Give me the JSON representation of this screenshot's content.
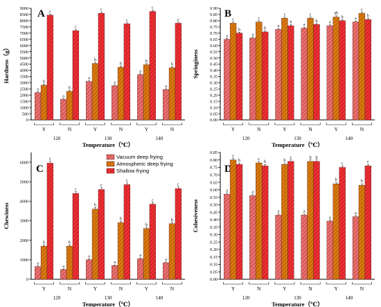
{
  "colors": {
    "vacuum": "#e8706f",
    "atmospheric": "#d9780f",
    "shallow": "#ee3035",
    "axis": "#000000",
    "hatch": "#7a1010"
  },
  "legend": {
    "items": [
      {
        "label": "Vacuum deep frying",
        "color": "#e8706f"
      },
      {
        "label": "Atmospheric deep frying",
        "color": "#d9780f"
      },
      {
        "label": "Shallow frying",
        "color": "#ee3035"
      }
    ]
  },
  "chart_data": [
    {
      "type": "bar",
      "panel_letter": "A",
      "ylabel": "Hardness（g）",
      "xlabel": "Temperature（℃）",
      "ylim": [
        0,
        9000
      ],
      "yticks": [
        0,
        500,
        1000,
        1500,
        2000,
        2500,
        3000,
        3500,
        4000,
        4500,
        5000,
        5500,
        6000,
        6500,
        7000,
        7500,
        8000,
        8500,
        9000
      ],
      "temperatures": [
        "120",
        "130",
        "140"
      ],
      "conditions": [
        "Y",
        "N"
      ],
      "series": [
        {
          "name": "Vacuum deep frying",
          "values": [
            2200,
            1650,
            3100,
            2750,
            3650,
            2450
          ],
          "errors": [
            70,
            60,
            90,
            70,
            80,
            70
          ],
          "labels": [
            "a",
            "a",
            "a",
            "a",
            "a",
            "a"
          ]
        },
        {
          "name": "Atmospheric deep frying",
          "values": [
            2800,
            2300,
            4550,
            4250,
            4450,
            4200
          ],
          "errors": [
            80,
            70,
            90,
            80,
            90,
            80
          ],
          "labels": [
            "b",
            "b",
            "b",
            "b",
            "b",
            "b"
          ]
        },
        {
          "name": "Shallow frying",
          "values": [
            8450,
            7200,
            8600,
            7750,
            8750,
            7800
          ],
          "errors": [
            100,
            90,
            100,
            90,
            100,
            90
          ],
          "labels": [
            "c",
            "c",
            "c",
            "c",
            "c",
            "c"
          ]
        }
      ]
    },
    {
      "type": "bar",
      "panel_letter": "B",
      "ylabel": "Springiness",
      "xlabel": "Temperature（℃）",
      "ylim": [
        0,
        0.9
      ],
      "yticks": [
        0,
        0.05,
        0.1,
        0.15,
        0.2,
        0.25,
        0.3,
        0.35,
        0.4,
        0.45,
        0.5,
        0.55,
        0.6,
        0.65,
        0.7,
        0.75,
        0.8,
        0.85,
        0.9
      ],
      "temperatures": [
        "120",
        "130",
        "140"
      ],
      "conditions": [
        "Y",
        "N"
      ],
      "series": [
        {
          "name": "Vacuum deep frying",
          "values": [
            0.65,
            0.66,
            0.73,
            0.74,
            0.76,
            0.79
          ],
          "errors": [
            0.008,
            0.008,
            0.008,
            0.008,
            0.008,
            0.008
          ],
          "labels": [
            "a",
            "a",
            "a",
            "a",
            "a",
            "a"
          ]
        },
        {
          "name": "Atmospheric deep frying",
          "values": [
            0.78,
            0.79,
            0.82,
            0.82,
            0.83,
            0.86
          ],
          "errors": [
            0.01,
            0.01,
            0.01,
            0.01,
            0.01,
            0.01
          ],
          "labels": [
            "c",
            "c",
            "c",
            "c",
            "ab",
            "c"
          ]
        },
        {
          "name": "Shallow frying",
          "values": [
            0.7,
            0.71,
            0.76,
            0.77,
            0.8,
            0.81
          ],
          "errors": [
            0.008,
            0.008,
            0.008,
            0.008,
            0.008,
            0.008
          ],
          "labels": [
            "b",
            "b",
            "b",
            "b",
            "b",
            "b"
          ]
        }
      ]
    },
    {
      "type": "bar",
      "panel_letter": "C",
      "ylabel": "Chewiness",
      "xlabel": "Temperature（℃）",
      "ylim": [
        0,
        6500
      ],
      "yticks": [
        0,
        1000,
        2000,
        3000,
        4000,
        5000,
        6000
      ],
      "temperatures": [
        "120",
        "130",
        "140"
      ],
      "conditions": [
        "Y",
        "N"
      ],
      "series": [
        {
          "name": "Vacuum deep frying",
          "values": [
            650,
            500,
            1000,
            700,
            1050,
            850
          ],
          "errors": [
            40,
            30,
            50,
            40,
            50,
            40
          ],
          "labels": [
            "a",
            "a",
            "a",
            "a",
            "a",
            "a"
          ]
        },
        {
          "name": "Atmospheric deep frying",
          "values": [
            1700,
            1700,
            3600,
            2900,
            2600,
            2850
          ],
          "errors": [
            60,
            60,
            80,
            70,
            70,
            70
          ],
          "labels": [
            "b",
            "b",
            "b",
            "b",
            "b",
            "b"
          ]
        },
        {
          "name": "Shallow frying",
          "values": [
            5950,
            4400,
            4600,
            4850,
            3850,
            4650
          ],
          "errors": [
            100,
            90,
            90,
            90,
            80,
            90
          ],
          "labels": [
            "c",
            "c",
            "c",
            "c",
            "c",
            "c"
          ]
        }
      ]
    },
    {
      "type": "bar",
      "panel_letter": "D",
      "ylabel": "Cohesiveness",
      "xlabel": "Temperature（℃）",
      "ylim": [
        0,
        0.85
      ],
      "yticks": [
        0,
        0.05,
        0.1,
        0.15,
        0.2,
        0.25,
        0.3,
        0.35,
        0.4,
        0.45,
        0.5,
        0.55,
        0.6,
        0.65,
        0.7,
        0.75,
        0.8,
        0.85
      ],
      "temperatures": [
        "120",
        "130",
        "140"
      ],
      "conditions": [
        "Y",
        "N"
      ],
      "series": [
        {
          "name": "Vacuum deep frying",
          "values": [
            0.57,
            0.56,
            0.43,
            0.43,
            0.39,
            0.42
          ],
          "errors": [
            0.008,
            0.008,
            0.008,
            0.008,
            0.008,
            0.008
          ],
          "labels": [
            "a",
            "a",
            "a",
            "a",
            "a",
            "a"
          ]
        },
        {
          "name": "Atmospheric deep frying",
          "values": [
            0.8,
            0.78,
            0.77,
            0.79,
            0.64,
            0.63
          ],
          "errors": [
            0.01,
            0.01,
            0.01,
            0.01,
            0.01,
            0.01
          ],
          "labels": [
            "c",
            "c",
            "b",
            "b",
            "b",
            "b"
          ]
        },
        {
          "name": "Shallow frying",
          "values": [
            0.77,
            0.76,
            0.79,
            0.79,
            0.75,
            0.76
          ],
          "errors": [
            0.01,
            0.01,
            0.01,
            0.01,
            0.01,
            0.01
          ],
          "labels": [
            "b",
            "b",
            "c",
            "b",
            "c",
            "c"
          ]
        }
      ]
    }
  ]
}
